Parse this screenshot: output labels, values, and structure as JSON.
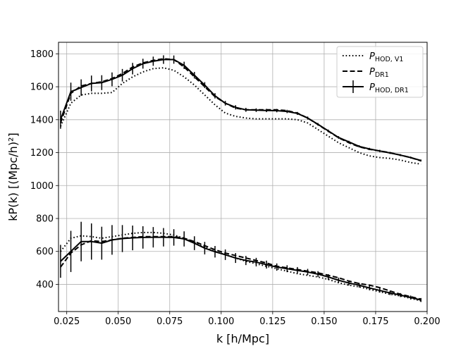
{
  "chart_data": {
    "type": "line",
    "xlabel": "k [h/Mpc]",
    "ylabel": "kP(k) [(Mpc/h)²]",
    "xlim": [
      0.021,
      0.2
    ],
    "ylim": [
      235,
      1870
    ],
    "xticks": [
      0.025,
      0.05,
      0.075,
      0.1,
      0.125,
      0.15,
      0.175,
      0.2
    ],
    "xtick_labels": [
      "0.025",
      "0.050",
      "0.075",
      "0.100",
      "0.125",
      "0.150",
      "0.175",
      "0.200"
    ],
    "yticks": [
      400,
      600,
      800,
      1000,
      1200,
      1400,
      1600,
      1800
    ],
    "ytick_labels": [
      "400",
      "600",
      "800",
      "1000",
      "1200",
      "1400",
      "1600",
      "1800"
    ],
    "grid": true,
    "legend_position": "top-right",
    "legend": [
      {
        "main": "P",
        "sub": "HOD, V1",
        "style": "dotted"
      },
      {
        "main": "P",
        "sub": "DR1",
        "style": "dashed"
      },
      {
        "main": "P",
        "sub": "HOD, DR1",
        "style": "errorbar"
      }
    ],
    "series": [
      {
        "name": "P_HOD,V1 (upper)",
        "style": "dotted",
        "x": [
          0.022,
          0.027,
          0.032,
          0.037,
          0.042,
          0.047,
          0.052,
          0.057,
          0.062,
          0.067,
          0.072,
          0.077,
          0.082,
          0.087,
          0.092,
          0.097,
          0.102,
          0.107,
          0.112,
          0.117,
          0.122,
          0.127,
          0.132,
          0.137,
          0.142,
          0.147,
          0.152,
          0.157,
          0.162,
          0.167,
          0.172,
          0.177,
          0.182,
          0.187,
          0.192,
          0.197
        ],
        "y": [
          1360,
          1500,
          1550,
          1560,
          1560,
          1565,
          1620,
          1660,
          1690,
          1710,
          1715,
          1700,
          1660,
          1610,
          1550,
          1490,
          1440,
          1420,
          1410,
          1405,
          1405,
          1405,
          1405,
          1400,
          1380,
          1340,
          1300,
          1260,
          1230,
          1200,
          1180,
          1170,
          1165,
          1155,
          1140,
          1130
        ]
      },
      {
        "name": "P_DR1 (upper)",
        "style": "dashed",
        "x": [
          0.022,
          0.027,
          0.032,
          0.037,
          0.042,
          0.047,
          0.052,
          0.057,
          0.062,
          0.067,
          0.072,
          0.077,
          0.082,
          0.087,
          0.092,
          0.097,
          0.102,
          0.107,
          0.112,
          0.117,
          0.122,
          0.127,
          0.132,
          0.137,
          0.142,
          0.147,
          0.152,
          0.157,
          0.162,
          0.167,
          0.172,
          0.177,
          0.182,
          0.187,
          0.192,
          0.197
        ],
        "y": [
          1380,
          1560,
          1605,
          1620,
          1630,
          1650,
          1680,
          1720,
          1745,
          1760,
          1770,
          1765,
          1720,
          1660,
          1600,
          1540,
          1500,
          1470,
          1460,
          1460,
          1460,
          1460,
          1455,
          1440,
          1410,
          1370,
          1330,
          1290,
          1260,
          1235,
          1220,
          1210,
          1200,
          1185,
          1170,
          1150
        ]
      },
      {
        "name": "P_HOD,DR1 (upper)",
        "style": "errorbar",
        "x": [
          0.022,
          0.027,
          0.032,
          0.037,
          0.042,
          0.047,
          0.052,
          0.057,
          0.062,
          0.067,
          0.072,
          0.077,
          0.082,
          0.087,
          0.092,
          0.097,
          0.102,
          0.107,
          0.112,
          0.117,
          0.122,
          0.127,
          0.132,
          0.137,
          0.142,
          0.147,
          0.152,
          0.157,
          0.162,
          0.167,
          0.172,
          0.177,
          0.182,
          0.187,
          0.192,
          0.197
        ],
        "y": [
          1400,
          1570,
          1595,
          1620,
          1625,
          1645,
          1670,
          1710,
          1740,
          1755,
          1765,
          1765,
          1730,
          1670,
          1610,
          1545,
          1500,
          1475,
          1460,
          1458,
          1456,
          1455,
          1450,
          1438,
          1410,
          1372,
          1332,
          1292,
          1265,
          1238,
          1222,
          1210,
          1198,
          1185,
          1170,
          1152
        ],
        "yerr": [
          55,
          55,
          50,
          48,
          45,
          42,
          38,
          35,
          30,
          28,
          26,
          25,
          22,
          20,
          18,
          16,
          14,
          13,
          12,
          11,
          10,
          10,
          10,
          9,
          9,
          8,
          8,
          8,
          7,
          7,
          7,
          7,
          6,
          6,
          6,
          6
        ]
      },
      {
        "name": "P_HOD,V1 (lower)",
        "style": "dotted",
        "x": [
          0.022,
          0.027,
          0.032,
          0.037,
          0.042,
          0.047,
          0.052,
          0.057,
          0.062,
          0.067,
          0.072,
          0.077,
          0.082,
          0.087,
          0.092,
          0.097,
          0.102,
          0.107,
          0.112,
          0.117,
          0.122,
          0.127,
          0.132,
          0.137,
          0.142,
          0.147,
          0.152,
          0.157,
          0.162,
          0.167,
          0.172,
          0.177,
          0.182,
          0.187,
          0.192,
          0.197
        ],
        "y": [
          600,
          680,
          695,
          690,
          680,
          690,
          700,
          710,
          715,
          715,
          710,
          700,
          680,
          655,
          625,
          600,
          580,
          560,
          540,
          525,
          510,
          495,
          480,
          465,
          455,
          445,
          430,
          410,
          395,
          385,
          370,
          355,
          340,
          330,
          315,
          300
        ]
      },
      {
        "name": "P_DR1 (lower)",
        "style": "dashed",
        "x": [
          0.022,
          0.027,
          0.032,
          0.037,
          0.042,
          0.047,
          0.052,
          0.057,
          0.062,
          0.067,
          0.072,
          0.077,
          0.082,
          0.087,
          0.092,
          0.097,
          0.102,
          0.107,
          0.112,
          0.117,
          0.122,
          0.127,
          0.132,
          0.137,
          0.142,
          0.147,
          0.152,
          0.157,
          0.162,
          0.167,
          0.172,
          0.177,
          0.182,
          0.187,
          0.192,
          0.197
        ],
        "y": [
          505,
          590,
          640,
          665,
          660,
          670,
          680,
          685,
          690,
          690,
          690,
          690,
          680,
          660,
          635,
          610,
          590,
          575,
          560,
          545,
          530,
          510,
          500,
          490,
          480,
          470,
          455,
          440,
          420,
          405,
          395,
          380,
          360,
          340,
          325,
          310
        ]
      },
      {
        "name": "P_HOD,DR1 (lower)",
        "style": "errorbar",
        "x": [
          0.022,
          0.027,
          0.032,
          0.037,
          0.042,
          0.047,
          0.052,
          0.057,
          0.062,
          0.067,
          0.072,
          0.077,
          0.082,
          0.087,
          0.092,
          0.097,
          0.102,
          0.107,
          0.112,
          0.117,
          0.122,
          0.127,
          0.132,
          0.137,
          0.142,
          0.147,
          0.152,
          0.157,
          0.162,
          0.167,
          0.172,
          0.177,
          0.182,
          0.187,
          0.192,
          0.197
        ],
        "y": [
          540,
          600,
          660,
          660,
          650,
          670,
          678,
          682,
          685,
          686,
          686,
          685,
          676,
          650,
          620,
          598,
          580,
          560,
          545,
          535,
          520,
          505,
          495,
          485,
          475,
          462,
          445,
          425,
          408,
          395,
          378,
          363,
          348,
          335,
          320,
          305
        ],
        "yerr": [
          100,
          125,
          120,
          110,
          100,
          90,
          82,
          75,
          68,
          62,
          56,
          50,
          46,
          42,
          38,
          35,
          32,
          30,
          28,
          26,
          24,
          22,
          21,
          20,
          19,
          18,
          17,
          16,
          15,
          14,
          14,
          13,
          13,
          12,
          12,
          12
        ]
      }
    ]
  }
}
